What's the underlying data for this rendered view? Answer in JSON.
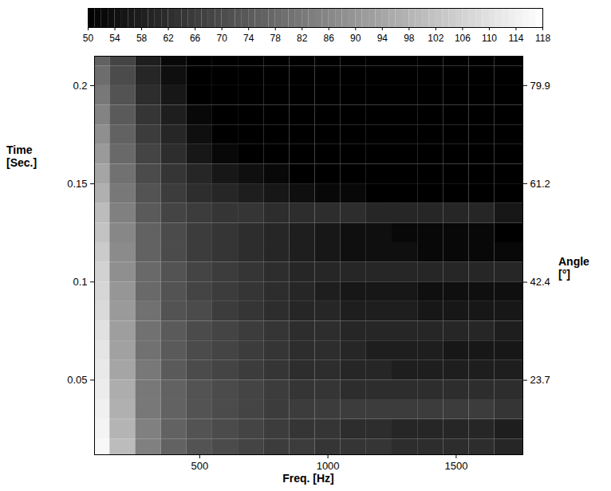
{
  "chart_data": {
    "type": "heatmap",
    "x_label": "Freq. [Hz]",
    "y_label": "Time [Sec.]",
    "y2_label": "Angle [°]",
    "xlim": [
      90,
      1760
    ],
    "xticks": [
      500,
      1000,
      1500
    ],
    "ylim": [
      0.012,
      0.215
    ],
    "yticks": [
      0.05,
      0.1,
      0.15,
      0.2
    ],
    "y2lim": [
      9.5,
      85.5
    ],
    "y2ticks": [
      23.7,
      42.4,
      61.2,
      79.9
    ],
    "x_bins": [
      90,
      150,
      250,
      350,
      450,
      550,
      650,
      750,
      850,
      950,
      1050,
      1150,
      1250,
      1350,
      1450,
      1550,
      1650,
      1760
    ],
    "y_bins": [
      0.012,
      0.02,
      0.03,
      0.04,
      0.05,
      0.06,
      0.07,
      0.08,
      0.09,
      0.1,
      0.11,
      0.12,
      0.13,
      0.14,
      0.15,
      0.16,
      0.17,
      0.18,
      0.19,
      0.2,
      0.21,
      0.215
    ],
    "values": [
      [
        116,
        100,
        84,
        76,
        72,
        70,
        68,
        66,
        66,
        64,
        64,
        64,
        62,
        62,
        62,
        62,
        60
      ],
      [
        115,
        98,
        84,
        76,
        72,
        70,
        68,
        66,
        64,
        64,
        62,
        62,
        60,
        60,
        60,
        60,
        58
      ],
      [
        114,
        97,
        82,
        76,
        72,
        70,
        68,
        66,
        66,
        66,
        66,
        66,
        66,
        66,
        66,
        66,
        64
      ],
      [
        113,
        96,
        82,
        76,
        72,
        70,
        68,
        66,
        64,
        64,
        62,
        62,
        62,
        62,
        62,
        62,
        62
      ],
      [
        112,
        94,
        82,
        74,
        70,
        68,
        66,
        64,
        62,
        62,
        60,
        60,
        58,
        58,
        58,
        58,
        58
      ],
      [
        111,
        93,
        80,
        74,
        70,
        68,
        66,
        64,
        62,
        62,
        60,
        58,
        58,
        58,
        56,
        56,
        56
      ],
      [
        110,
        92,
        80,
        74,
        70,
        68,
        66,
        64,
        62,
        62,
        60,
        60,
        60,
        60,
        60,
        60,
        58
      ],
      [
        108,
        91,
        80,
        72,
        70,
        66,
        64,
        62,
        60,
        60,
        58,
        58,
        58,
        56,
        56,
        56,
        56
      ],
      [
        107,
        90,
        78,
        72,
        68,
        66,
        64,
        62,
        60,
        58,
        56,
        56,
        56,
        54,
        54,
        54,
        54
      ],
      [
        106,
        88,
        78,
        72,
        68,
        66,
        64,
        62,
        60,
        60,
        60,
        60,
        60,
        60,
        60,
        60,
        60
      ],
      [
        104,
        87,
        76,
        70,
        66,
        64,
        62,
        60,
        58,
        56,
        54,
        54,
        54,
        52,
        52,
        52,
        52
      ],
      [
        102,
        86,
        76,
        70,
        66,
        64,
        62,
        60,
        58,
        56,
        54,
        54,
        52,
        52,
        52,
        52,
        50
      ],
      [
        100,
        84,
        74,
        68,
        66,
        64,
        64,
        62,
        62,
        62,
        62,
        60,
        60,
        60,
        60,
        60,
        56
      ],
      [
        97,
        82,
        72,
        66,
        62,
        60,
        58,
        56,
        54,
        52,
        52,
        50,
        50,
        50,
        50,
        50,
        50
      ],
      [
        94,
        80,
        70,
        64,
        60,
        56,
        54,
        52,
        50,
        50,
        50,
        50,
        50,
        50,
        50,
        50,
        50
      ],
      [
        91,
        78,
        68,
        62,
        56,
        52,
        50,
        50,
        50,
        50,
        50,
        50,
        50,
        50,
        50,
        50,
        50
      ],
      [
        88,
        76,
        66,
        60,
        54,
        50,
        50,
        50,
        50,
        50,
        50,
        50,
        50,
        50,
        50,
        50,
        50
      ],
      [
        85,
        74,
        64,
        58,
        52,
        50,
        50,
        50,
        50,
        50,
        50,
        50,
        50,
        50,
        50,
        50,
        50
      ],
      [
        82,
        72,
        62,
        56,
        50,
        50,
        50,
        50,
        50,
        50,
        50,
        50,
        50,
        50,
        50,
        50,
        50
      ],
      [
        79,
        70,
        60,
        54,
        50,
        50,
        50,
        50,
        50,
        50,
        50,
        50,
        50,
        50,
        50,
        50,
        50
      ],
      [
        76,
        68,
        58,
        52,
        50,
        50,
        50,
        50,
        50,
        50,
        50,
        50,
        50,
        50,
        50,
        50,
        50
      ]
    ],
    "colorbar_lim": [
      50,
      118
    ],
    "colorbar_ticks": [
      50,
      54,
      58,
      62,
      66,
      70,
      74,
      78,
      82,
      86,
      90,
      94,
      98,
      102,
      106,
      110,
      114,
      118
    ]
  }
}
